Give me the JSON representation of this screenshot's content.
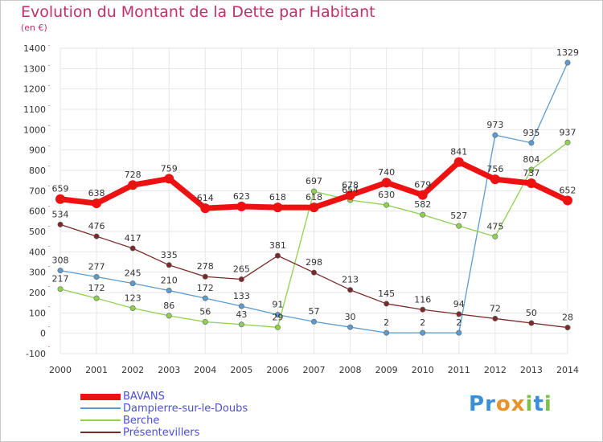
{
  "title": "Evolution du Montant de la Dette par Habitant",
  "subtitle": "(en €)",
  "logo": {
    "text": "Proxiti",
    "letters": [
      {
        "c": "P",
        "color": "#3a8fd8"
      },
      {
        "c": "r",
        "color": "#3a8fd8"
      },
      {
        "c": "o",
        "color": "#e8932a"
      },
      {
        "c": "x",
        "color": "#e8932a"
      },
      {
        "c": "i",
        "color": "#7cc24a"
      },
      {
        "c": "t",
        "color": "#3a8fd8"
      },
      {
        "c": "i",
        "color": "#7cc24a"
      }
    ]
  },
  "chart_data": {
    "type": "line",
    "x": [
      2000,
      2001,
      2002,
      2003,
      2004,
      2005,
      2006,
      2007,
      2008,
      2009,
      2010,
      2011,
      2012,
      2013,
      2014
    ],
    "ylim": [
      -100,
      1400
    ],
    "yticks": [
      -100,
      0,
      100,
      200,
      300,
      400,
      500,
      600,
      700,
      800,
      900,
      1000,
      1100,
      1200,
      1300,
      1400
    ],
    "grid": true,
    "legend_position": "bottom-left",
    "series": [
      {
        "name": "BAVANS",
        "color": "#ee1111",
        "values": [
          659,
          638,
          728,
          759,
          614,
          623,
          618,
          618,
          678,
          740,
          679,
          841,
          756,
          737,
          652
        ],
        "labels": [
          "659",
          "638",
          "728",
          "759",
          "614",
          "623",
          "618",
          "618",
          "678",
          "740",
          "679",
          "841",
          "756",
          "737",
          "652"
        ]
      },
      {
        "name": "Dampierre-sur-le-Doubs",
        "color": "#5b9bd0",
        "values": [
          308,
          277,
          245,
          210,
          172,
          133,
          91,
          57,
          30,
          2,
          2,
          2,
          973,
          935,
          1329
        ],
        "labels": [
          "308",
          "277",
          "245",
          "210",
          "172",
          "133",
          "91",
          "57",
          "30",
          "2",
          "2",
          "2",
          "973",
          "935",
          "1329"
        ]
      },
      {
        "name": "Berche",
        "color": "#8fd14f",
        "values": [
          217,
          172,
          123,
          86,
          56,
          43,
          29,
          697,
          654,
          630,
          582,
          527,
          475,
          804,
          937
        ],
        "labels": [
          "217",
          "172",
          "123",
          "86",
          "56",
          "43",
          "29",
          "697",
          "654",
          "630",
          "582",
          "527",
          "475",
          "804",
          "937"
        ]
      },
      {
        "name": "Présentevillers",
        "color": "#7a2a2a",
        "values": [
          534,
          476,
          417,
          335,
          278,
          265,
          381,
          298,
          213,
          145,
          116,
          94,
          72,
          50,
          28
        ],
        "labels": [
          "534",
          "476",
          "417",
          "335",
          "278",
          "265",
          "381",
          "298",
          "213",
          "145",
          "116",
          "94",
          "72",
          "50",
          "28"
        ]
      }
    ]
  }
}
